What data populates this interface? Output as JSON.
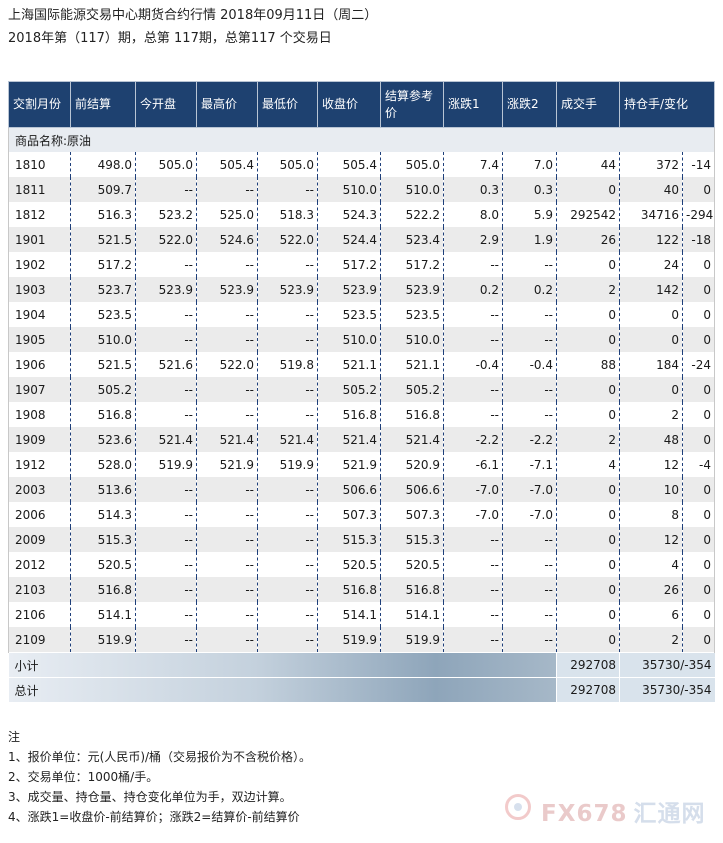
{
  "header": {
    "line1": "上海国际能源交易中心期货合约行情 2018年09月11日（周二）",
    "line2": "2018年第（117）期，总第 117期，总第117 个交易日"
  },
  "table": {
    "columns": [
      "交割月份",
      "前结算",
      "今开盘",
      "最高价",
      "最低价",
      "收盘价",
      "结算参考价",
      "涨跌1",
      "涨跌2",
      "成交手",
      "持仓手/变化",
      ""
    ],
    "category": "商品名称:原油",
    "rows": [
      [
        "1810",
        "498.0",
        "505.0",
        "505.4",
        "505.0",
        "505.4",
        "505.0",
        "7.4",
        "7.0",
        "44",
        "372",
        "-14"
      ],
      [
        "1811",
        "509.7",
        "--",
        "--",
        "--",
        "510.0",
        "510.0",
        "0.3",
        "0.3",
        "0",
        "40",
        "0"
      ],
      [
        "1812",
        "516.3",
        "523.2",
        "525.0",
        "518.3",
        "524.3",
        "522.2",
        "8.0",
        "5.9",
        "292542",
        "34716",
        "-294"
      ],
      [
        "1901",
        "521.5",
        "522.0",
        "524.6",
        "522.0",
        "524.4",
        "523.4",
        "2.9",
        "1.9",
        "26",
        "122",
        "-18"
      ],
      [
        "1902",
        "517.2",
        "--",
        "--",
        "--",
        "517.2",
        "517.2",
        "--",
        "--",
        "0",
        "24",
        "0"
      ],
      [
        "1903",
        "523.7",
        "523.9",
        "523.9",
        "523.9",
        "523.9",
        "523.9",
        "0.2",
        "0.2",
        "2",
        "142",
        "0"
      ],
      [
        "1904",
        "523.5",
        "--",
        "--",
        "--",
        "523.5",
        "523.5",
        "--",
        "--",
        "0",
        "0",
        "0"
      ],
      [
        "1905",
        "510.0",
        "--",
        "--",
        "--",
        "510.0",
        "510.0",
        "--",
        "--",
        "0",
        "0",
        "0"
      ],
      [
        "1906",
        "521.5",
        "521.6",
        "522.0",
        "519.8",
        "521.1",
        "521.1",
        "-0.4",
        "-0.4",
        "88",
        "184",
        "-24"
      ],
      [
        "1907",
        "505.2",
        "--",
        "--",
        "--",
        "505.2",
        "505.2",
        "--",
        "--",
        "0",
        "0",
        "0"
      ],
      [
        "1908",
        "516.8",
        "--",
        "--",
        "--",
        "516.8",
        "516.8",
        "--",
        "--",
        "0",
        "2",
        "0"
      ],
      [
        "1909",
        "523.6",
        "521.4",
        "521.4",
        "521.4",
        "521.4",
        "521.4",
        "-2.2",
        "-2.2",
        "2",
        "48",
        "0"
      ],
      [
        "1912",
        "528.0",
        "519.9",
        "521.9",
        "519.9",
        "521.9",
        "520.9",
        "-6.1",
        "-7.1",
        "4",
        "12",
        "-4"
      ],
      [
        "2003",
        "513.6",
        "--",
        "--",
        "--",
        "506.6",
        "506.6",
        "-7.0",
        "-7.0",
        "0",
        "10",
        "0"
      ],
      [
        "2006",
        "514.3",
        "--",
        "--",
        "--",
        "507.3",
        "507.3",
        "-7.0",
        "-7.0",
        "0",
        "8",
        "0"
      ],
      [
        "2009",
        "515.3",
        "--",
        "--",
        "--",
        "515.3",
        "515.3",
        "--",
        "--",
        "0",
        "12",
        "0"
      ],
      [
        "2012",
        "520.5",
        "--",
        "--",
        "--",
        "520.5",
        "520.5",
        "--",
        "--",
        "0",
        "4",
        "0"
      ],
      [
        "2103",
        "516.8",
        "--",
        "--",
        "--",
        "516.8",
        "516.8",
        "--",
        "--",
        "0",
        "26",
        "0"
      ],
      [
        "2106",
        "514.1",
        "--",
        "--",
        "--",
        "514.1",
        "514.1",
        "--",
        "--",
        "0",
        "6",
        "0"
      ],
      [
        "2109",
        "519.9",
        "--",
        "--",
        "--",
        "519.9",
        "519.9",
        "--",
        "--",
        "0",
        "2",
        "0"
      ]
    ],
    "subtotal": {
      "label": "小计",
      "volume": "292708",
      "oi": "35730/-354"
    },
    "total": {
      "label": "总计",
      "volume": "292708",
      "oi": "35730/-354"
    }
  },
  "notes": {
    "title": "注",
    "items": [
      "1、报价单位：元(人民币)/桶（交易报价为不含税价格）。",
      "2、交易单位：1000桶/手。",
      "3、成交量、持仓量、持仓变化单位为手，双边计算。",
      "4、涨跌1=收盘价-前结算价；涨跌2=结算价-前结算价"
    ]
  },
  "watermark": {
    "text": "FX678",
    "text_cn": "汇通网",
    "icon": "fx678-logo-icon"
  }
}
